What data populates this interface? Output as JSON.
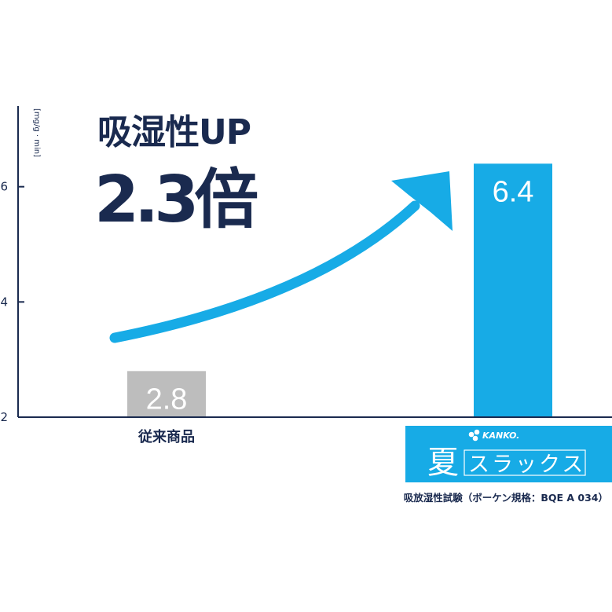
{
  "chart_data": {
    "type": "bar",
    "unit_label": "[mg/g · min]",
    "ylim": [
      2,
      7.4
    ],
    "y_ticks": [
      2,
      4,
      6
    ],
    "grid": false,
    "categories": [
      "従来商品",
      "夏スラックス"
    ],
    "values": [
      2.8,
      6.4
    ],
    "value_labels": [
      "2.8",
      "6.4"
    ],
    "colors": [
      "#bdbdbd",
      "#17abe6"
    ],
    "annotation_line1": "吸湿性UP",
    "annotation_line2": "2.3倍",
    "footnote": "吸放湿性試験（ボーケン規格：BQE A 034）"
  },
  "brand": {
    "logo_text": "KANKO.",
    "product_kanji": "夏",
    "product_kana": "スラックス",
    "color": "#17abe6"
  },
  "colors": {
    "axis": "#1a2a4f",
    "arrow": "#17abe6"
  }
}
